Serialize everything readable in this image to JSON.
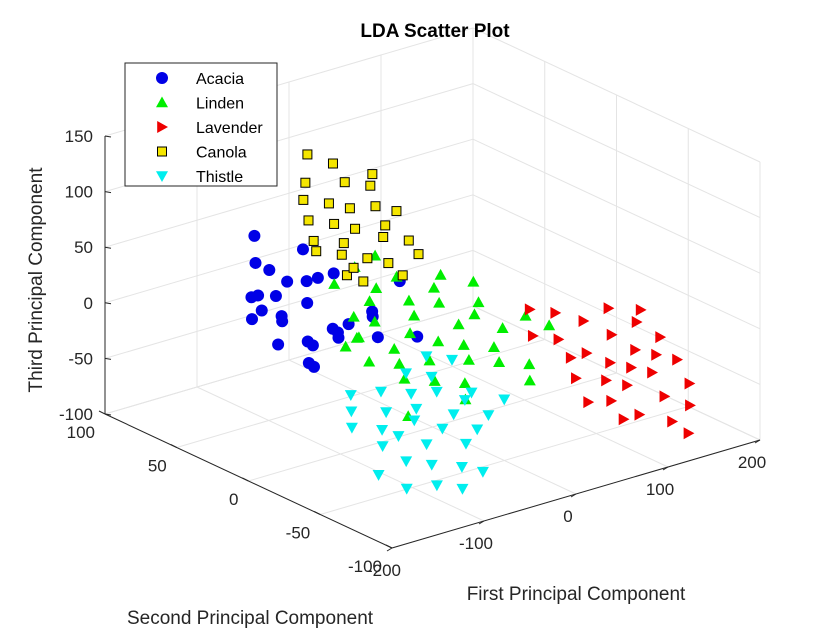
{
  "chart_data": {
    "type": "scatter",
    "projection": "3d",
    "title": "LDA Scatter Plot",
    "xlabel": "First Principal Component",
    "ylabel": "Second Principal Component",
    "zlabel": "Third Principal Component",
    "xlim": [
      -200,
      200
    ],
    "ylim": [
      -100,
      100
    ],
    "zlim": [
      -100,
      150
    ],
    "x_ticks": [
      "-200",
      "-100",
      "0",
      "100",
      "200"
    ],
    "y_ticks": [
      "-100",
      "-50",
      "0",
      "50",
      "100"
    ],
    "z_ticks": [
      "-100",
      "-50",
      "0",
      "50",
      "100",
      "150"
    ],
    "grid": true,
    "legend_position": "top-left",
    "series": [
      {
        "name": "Acacia",
        "marker": "circle",
        "color": "#0000e6",
        "points": [
          [
            -170,
            10,
            40
          ],
          [
            -165,
            20,
            25
          ],
          [
            -160,
            5,
            10
          ],
          [
            -150,
            30,
            35
          ],
          [
            -140,
            15,
            20
          ],
          [
            -135,
            35,
            30
          ],
          [
            -130,
            0,
            5
          ],
          [
            -125,
            25,
            15
          ],
          [
            -120,
            10,
            0
          ],
          [
            -115,
            40,
            45
          ],
          [
            -110,
            -5,
            10
          ],
          [
            -105,
            20,
            25
          ],
          [
            -100,
            45,
            15
          ],
          [
            -95,
            5,
            5
          ],
          [
            -90,
            30,
            35
          ],
          [
            -85,
            15,
            0
          ],
          [
            -80,
            50,
            20
          ],
          [
            -75,
            -10,
            5
          ],
          [
            -70,
            35,
            30
          ],
          [
            -65,
            0,
            15
          ],
          [
            -60,
            20,
            -5
          ],
          [
            -55,
            55,
            40
          ],
          [
            -50,
            10,
            10
          ],
          [
            -45,
            40,
            25
          ],
          [
            -40,
            -15,
            0
          ],
          [
            -130,
            40,
            55
          ],
          [
            -100,
            60,
            60
          ],
          [
            -150,
            -10,
            0
          ],
          [
            -160,
            -20,
            5
          ],
          [
            -20,
            10,
            30
          ]
        ]
      },
      {
        "name": "Linden",
        "marker": "triangle-up",
        "color": "#00ee00",
        "points": [
          [
            -100,
            -20,
            -5
          ],
          [
            -90,
            -5,
            5
          ],
          [
            -85,
            -35,
            -15
          ],
          [
            -80,
            0,
            0
          ],
          [
            -75,
            -25,
            -10
          ],
          [
            -70,
            10,
            10
          ],
          [
            -65,
            -15,
            -5
          ],
          [
            -60,
            -40,
            -20
          ],
          [
            -55,
            5,
            5
          ],
          [
            -50,
            -30,
            -10
          ],
          [
            -45,
            15,
            15
          ],
          [
            -40,
            -10,
            0
          ],
          [
            -35,
            -45,
            -25
          ],
          [
            -30,
            20,
            20
          ],
          [
            -25,
            -20,
            -5
          ],
          [
            -20,
            0,
            5
          ],
          [
            -15,
            -35,
            -15
          ],
          [
            -10,
            10,
            10
          ],
          [
            -5,
            -25,
            -10
          ],
          [
            0,
            25,
            20
          ],
          [
            5,
            -15,
            0
          ],
          [
            10,
            -40,
            -20
          ],
          [
            15,
            5,
            5
          ],
          [
            20,
            -30,
            -15
          ],
          [
            25,
            15,
            10
          ],
          [
            30,
            -10,
            0
          ],
          [
            35,
            -45,
            -25
          ],
          [
            40,
            20,
            15
          ],
          [
            45,
            -20,
            -10
          ],
          [
            50,
            0,
            0
          ],
          [
            -60,
            30,
            25
          ],
          [
            -30,
            35,
            30
          ],
          [
            0,
            40,
            30
          ],
          [
            -110,
            -10,
            5
          ],
          [
            60,
            10,
            10
          ],
          [
            70,
            -20,
            -5
          ],
          [
            -120,
            -60,
            -25
          ],
          [
            -50,
            -55,
            -30
          ],
          [
            20,
            -55,
            -30
          ],
          [
            80,
            -30,
            -10
          ]
        ]
      },
      {
        "name": "Lavender",
        "marker": "triangle-right",
        "color": "#ee0000",
        "points": [
          [
            60,
            -70,
            -50
          ],
          [
            70,
            -55,
            -40
          ],
          [
            75,
            -85,
            -60
          ],
          [
            80,
            -45,
            -30
          ],
          [
            85,
            -70,
            -55
          ],
          [
            90,
            -30,
            -25
          ],
          [
            95,
            -60,
            -45
          ],
          [
            100,
            -80,
            -65
          ],
          [
            105,
            -40,
            -35
          ],
          [
            110,
            -65,
            -50
          ],
          [
            115,
            -50,
            -40
          ],
          [
            120,
            -90,
            -70
          ],
          [
            125,
            -25,
            -20
          ],
          [
            130,
            -55,
            -45
          ],
          [
            135,
            -75,
            -60
          ],
          [
            140,
            -35,
            -30
          ],
          [
            145,
            -60,
            -50
          ],
          [
            150,
            -45,
            -40
          ],
          [
            155,
            -80,
            -70
          ],
          [
            160,
            -20,
            -20
          ],
          [
            165,
            -50,
            -45
          ],
          [
            170,
            -70,
            -60
          ],
          [
            175,
            -30,
            -30
          ],
          [
            180,
            -55,
            -50
          ],
          [
            185,
            -40,
            -40
          ],
          [
            70,
            -25,
            -20
          ],
          [
            90,
            -10,
            -10
          ],
          [
            110,
            -15,
            -15
          ],
          [
            195,
            -20,
            -30
          ],
          [
            130,
            -95,
            -80
          ]
        ]
      },
      {
        "name": "Canola",
        "marker": "square",
        "color": "#f5e600",
        "points": [
          [
            -20,
            70,
            30
          ],
          [
            -10,
            80,
            40
          ],
          [
            -5,
            60,
            20
          ],
          [
            0,
            90,
            50
          ],
          [
            5,
            65,
            25
          ],
          [
            10,
            75,
            35
          ],
          [
            15,
            55,
            15
          ],
          [
            20,
            85,
            45
          ],
          [
            25,
            70,
            30
          ],
          [
            30,
            50,
            10
          ],
          [
            35,
            80,
            40
          ],
          [
            40,
            60,
            25
          ],
          [
            45,
            90,
            55
          ],
          [
            50,
            65,
            30
          ],
          [
            55,
            75,
            40
          ],
          [
            60,
            55,
            20
          ],
          [
            65,
            85,
            50
          ],
          [
            70,
            70,
            35
          ],
          [
            -15,
            50,
            10
          ],
          [
            -25,
            65,
            25
          ],
          [
            10,
            95,
            60
          ],
          [
            40,
            95,
            70
          ],
          [
            30,
            40,
            5
          ],
          [
            55,
            45,
            15
          ],
          [
            -5,
            45,
            5
          ],
          [
            75,
            90,
            55
          ],
          [
            20,
            100,
            80
          ],
          [
            0,
            55,
            10
          ]
        ]
      },
      {
        "name": "Thistle",
        "marker": "triangle-down",
        "color": "#00eeee",
        "points": [
          [
            -150,
            -40,
            -40
          ],
          [
            -140,
            -55,
            -50
          ],
          [
            -135,
            -30,
            -35
          ],
          [
            -130,
            -65,
            -60
          ],
          [
            -125,
            -45,
            -45
          ],
          [
            -120,
            -20,
            -30
          ],
          [
            -115,
            -50,
            -50
          ],
          [
            -110,
            -70,
            -65
          ],
          [
            -105,
            -35,
            -40
          ],
          [
            -100,
            -60,
            -55
          ],
          [
            -95,
            -25,
            -30
          ],
          [
            -90,
            -45,
            -45
          ],
          [
            -85,
            -75,
            -70
          ],
          [
            -80,
            -40,
            -40
          ],
          [
            -75,
            -55,
            -50
          ],
          [
            -70,
            -30,
            -35
          ],
          [
            -65,
            -65,
            -60
          ],
          [
            -60,
            -20,
            -25
          ],
          [
            -55,
            -50,
            -45
          ],
          [
            -50,
            -35,
            -35
          ],
          [
            -45,
            -60,
            -55
          ],
          [
            -40,
            -25,
            -30
          ],
          [
            -35,
            -45,
            -40
          ],
          [
            -30,
            -15,
            -20
          ],
          [
            -25,
            -55,
            -50
          ],
          [
            -160,
            -65,
            -65
          ],
          [
            -145,
            -75,
            -75
          ],
          [
            -20,
            -40,
            -40
          ],
          [
            -10,
            -20,
            -25
          ],
          [
            -100,
            -85,
            -80
          ],
          [
            -120,
            -80,
            -75
          ],
          [
            0,
            -50,
            -45
          ],
          [
            -70,
            -80,
            -75
          ]
        ]
      }
    ]
  }
}
